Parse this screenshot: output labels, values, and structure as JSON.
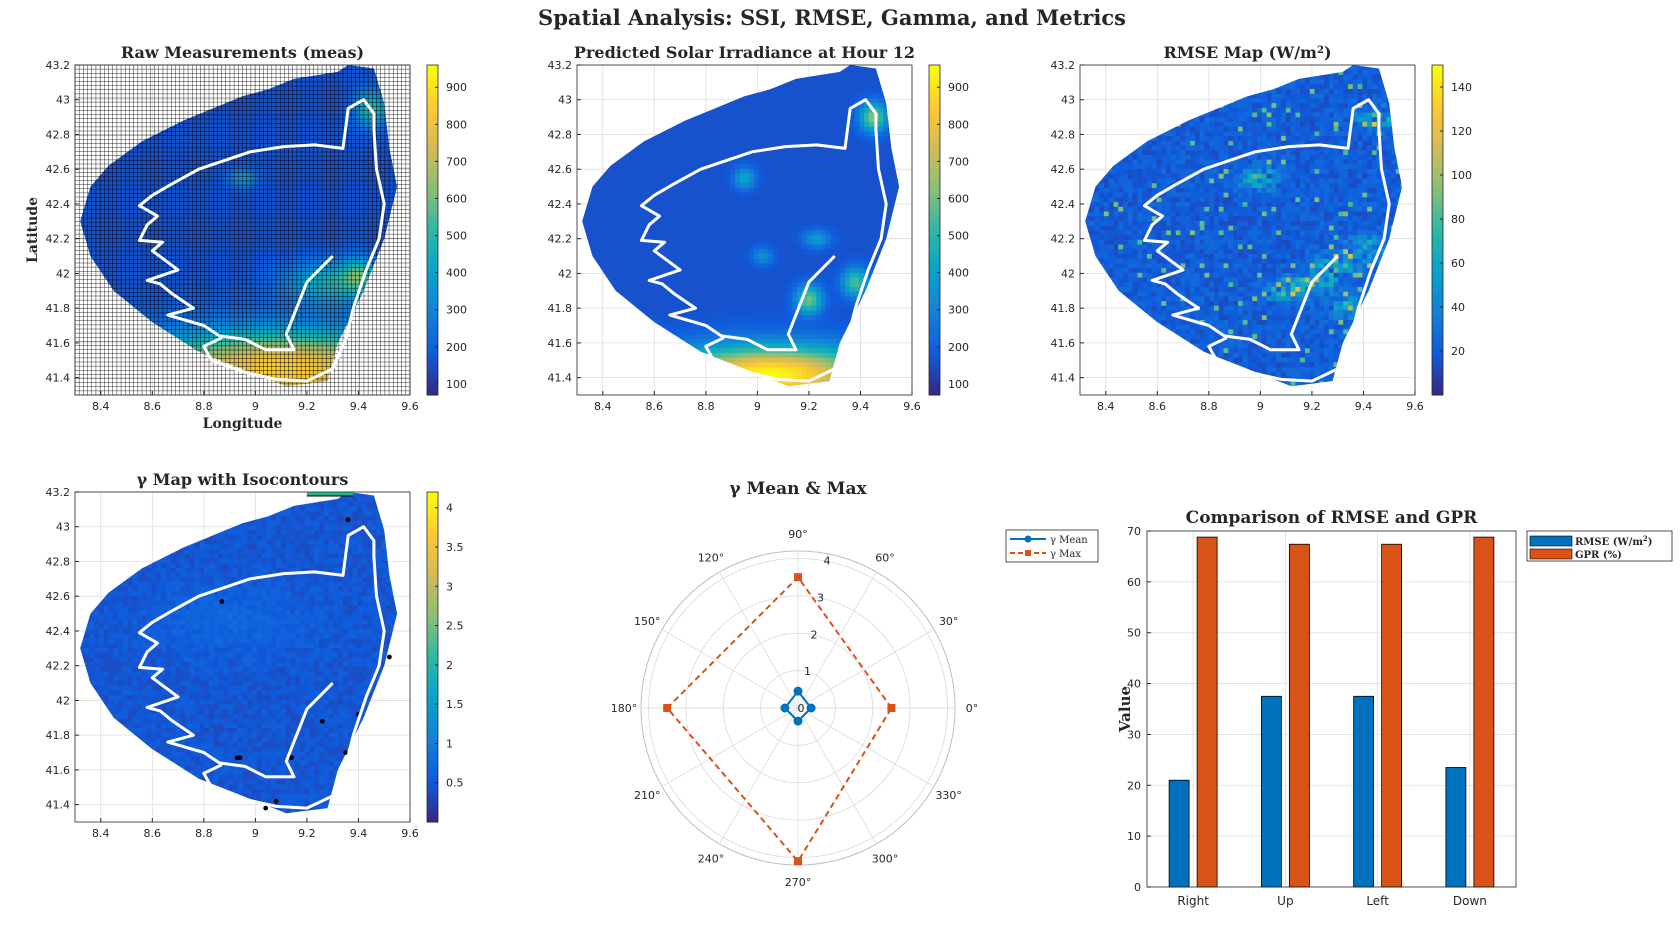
{
  "figure_title": "Spatial Analysis: SSI, RMSE, Gamma, and Metrics",
  "colors": {
    "parula": [
      "#352a87",
      "#0f5cdd",
      "#1481d6",
      "#06a4ca",
      "#2eb7a4",
      "#87bf77",
      "#d1bb59",
      "#fec832",
      "#f9fb0e"
    ],
    "boundary": "#ffffff",
    "mean_series": "#0072bd",
    "max_series": "#d95319",
    "grid": "#dedede",
    "axes": "#262626",
    "contour_top": "#1fb98a"
  },
  "chart_data": [
    {
      "id": "raw",
      "type": "heatmap",
      "title": "Raw Measurements (meas)",
      "xlabel": "Longitude",
      "ylabel": "Latitude",
      "xlim": [
        8.3,
        9.6
      ],
      "ylim": [
        41.3,
        43.2
      ],
      "xticks": [
        "8.4",
        "8.6",
        "8.8",
        "9",
        "9.2",
        "9.4",
        "9.6"
      ],
      "yticks": [
        "41.4",
        "41.6",
        "41.8",
        "42",
        "42.2",
        "42.4",
        "42.6",
        "42.8",
        "43",
        "43.2"
      ],
      "clim": [
        70,
        960
      ],
      "cticks": [
        "100",
        "200",
        "300",
        "400",
        "500",
        "600",
        "700",
        "800",
        "900"
      ],
      "field_note": "low values north-west, high values along southern band and north-east tip",
      "grid_mesh": true
    },
    {
      "id": "pred",
      "type": "heatmap",
      "title": "Predicted Solar Irradiance at Hour 12",
      "xlim": [
        8.3,
        9.6
      ],
      "ylim": [
        41.3,
        43.2
      ],
      "xticks": [
        "8.4",
        "8.6",
        "8.8",
        "9",
        "9.2",
        "9.4",
        "9.6"
      ],
      "yticks": [
        "41.4",
        "41.6",
        "41.8",
        "42",
        "42.2",
        "42.4",
        "42.6",
        "42.8",
        "43",
        "43.2"
      ],
      "clim": [
        70,
        960
      ],
      "cticks": [
        "100",
        "200",
        "300",
        "400",
        "500",
        "600",
        "700",
        "800",
        "900"
      ]
    },
    {
      "id": "rmse",
      "type": "heatmap",
      "title": "RMSE Map (W/m",
      "title_sup": "2",
      "title_end": ")",
      "xlim": [
        8.3,
        9.6
      ],
      "ylim": [
        41.3,
        43.2
      ],
      "xticks": [
        "8.4",
        "8.6",
        "8.8",
        "9",
        "9.2",
        "9.4",
        "9.6"
      ],
      "yticks": [
        "41.4",
        "41.6",
        "41.8",
        "42",
        "42.2",
        "42.4",
        "42.6",
        "42.8",
        "43",
        "43.2"
      ],
      "clim": [
        0,
        150
      ],
      "cticks": [
        "20",
        "40",
        "60",
        "80",
        "100",
        "120",
        "140"
      ]
    },
    {
      "id": "gamma",
      "type": "heatmap",
      "title": "γ Map with Isocontours",
      "xlim": [
        8.3,
        9.6
      ],
      "ylim": [
        41.3,
        43.2
      ],
      "xticks": [
        "8.4",
        "8.6",
        "8.8",
        "9",
        "9.2",
        "9.4",
        "9.6"
      ],
      "yticks": [
        "41.4",
        "41.6",
        "41.8",
        "42",
        "42.2",
        "42.4",
        "42.6",
        "42.8",
        "43",
        "43.2"
      ],
      "clim": [
        0,
        4.2
      ],
      "cticks": [
        "0.5",
        "1",
        "1.5",
        "2",
        "2.5",
        "3",
        "3.5",
        "4"
      ]
    },
    {
      "id": "polar",
      "type": "polar-line",
      "title": "γ Mean & Max",
      "theta_labels": [
        "0°",
        "30°",
        "60°",
        "90°",
        "120°",
        "150°",
        "180°",
        "210°",
        "240°",
        "270°",
        "300°",
        "330°"
      ],
      "r_ticks": [
        "0",
        "1",
        "2",
        "3",
        "4"
      ],
      "rlim": [
        0,
        4.2
      ],
      "theta_deg": [
        0,
        90,
        180,
        270
      ],
      "series": [
        {
          "name": "γ Mean",
          "values": [
            0.35,
            0.45,
            0.35,
            0.35
          ],
          "style": "solid-circle"
        },
        {
          "name": "γ Max",
          "values": [
            2.5,
            3.5,
            3.5,
            4.1
          ],
          "style": "dashed-square"
        }
      ],
      "legend_position": "top-right"
    },
    {
      "id": "bars",
      "type": "bar",
      "title": "Comparison of RMSE and GPR",
      "categories": [
        "Right",
        "Up",
        "Left",
        "Down"
      ],
      "ylabel": "Value",
      "ylim": [
        0,
        70
      ],
      "yticks": [
        "0",
        "10",
        "20",
        "30",
        "40",
        "50",
        "60",
        "70"
      ],
      "series": [
        {
          "name": "RMSE (W/m",
          "name_sup": "2",
          "name_end": ")",
          "values": [
            21,
            37.5,
            37.5,
            23.5
          ]
        },
        {
          "name": "GPR (%)",
          "values": [
            68.8,
            67.4,
            67.4,
            68.8
          ]
        }
      ],
      "legend_position": "outside-right"
    }
  ]
}
